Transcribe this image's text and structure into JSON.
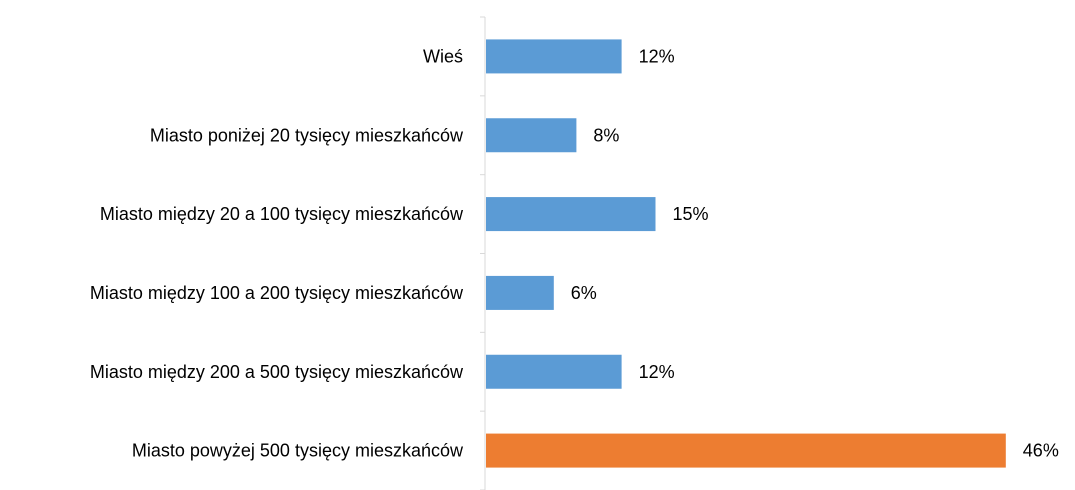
{
  "chart_data": {
    "type": "bar",
    "orientation": "horizontal",
    "categories": [
      "Wieś",
      "Miasto poniżej 20 tysięcy mieszkańców",
      "Miasto między 20 a 100 tysięcy mieszkańców",
      "Miasto między 100 a 200 tysięcy mieszkańców",
      "Miasto między 200 a 500 tysięcy mieszkańców",
      "Miasto powyżej 500 tysięcy mieszkańców"
    ],
    "values": [
      12,
      8,
      15,
      6,
      12,
      46
    ],
    "data_labels": [
      "12%",
      "8%",
      "15%",
      "6%",
      "12%",
      "46%"
    ],
    "unit": "%",
    "colors": [
      "#5b9bd5",
      "#5b9bd5",
      "#5b9bd5",
      "#5b9bd5",
      "#5b9bd5",
      "#ed7d31"
    ],
    "title": "",
    "xlabel": "",
    "ylabel": "",
    "xlim": [
      0,
      46
    ],
    "grid": false,
    "legend": "none"
  }
}
